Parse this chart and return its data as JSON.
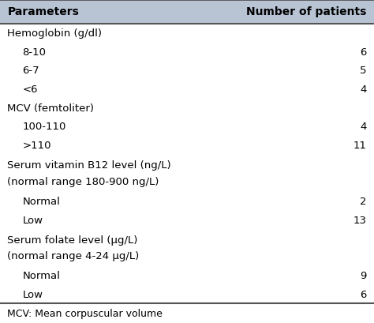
{
  "header": [
    "Parameters",
    "Number of patients"
  ],
  "rows": [
    {
      "label": "Hemoglobin (g/dl)",
      "value": "",
      "indent": 0,
      "category": true
    },
    {
      "label": "8-10",
      "value": "6",
      "indent": 1,
      "category": false
    },
    {
      "label": "6-7",
      "value": "5",
      "indent": 1,
      "category": false
    },
    {
      "label": "<6",
      "value": "4",
      "indent": 1,
      "category": false
    },
    {
      "label": "MCV (femtoliter)",
      "value": "",
      "indent": 0,
      "category": true
    },
    {
      "label": "100-110",
      "value": "4",
      "indent": 1,
      "category": false
    },
    {
      "label": ">110",
      "value": "11",
      "indent": 1,
      "category": false
    },
    {
      "label": "Serum vitamin B12 level (ng/L)\n(normal range 180-900 ng/L)",
      "value": "",
      "indent": 0,
      "category": true
    },
    {
      "label": "Normal",
      "value": "2",
      "indent": 1,
      "category": false
    },
    {
      "label": "Low",
      "value": "13",
      "indent": 1,
      "category": false
    },
    {
      "label": "Serum folate level (μg/L)\n(normal range 4-24 μg/L)",
      "value": "",
      "indent": 0,
      "category": true
    },
    {
      "label": "Normal",
      "value": "9",
      "indent": 1,
      "category": false
    },
    {
      "label": "Low",
      "value": "6",
      "indent": 1,
      "category": false
    }
  ],
  "footer": "MCV: Mean corpuscular volume",
  "header_bg": "#b8c4d4",
  "bg_color": "#ffffff",
  "text_color": "#000000",
  "font_size": 9.5,
  "header_font_size": 10
}
